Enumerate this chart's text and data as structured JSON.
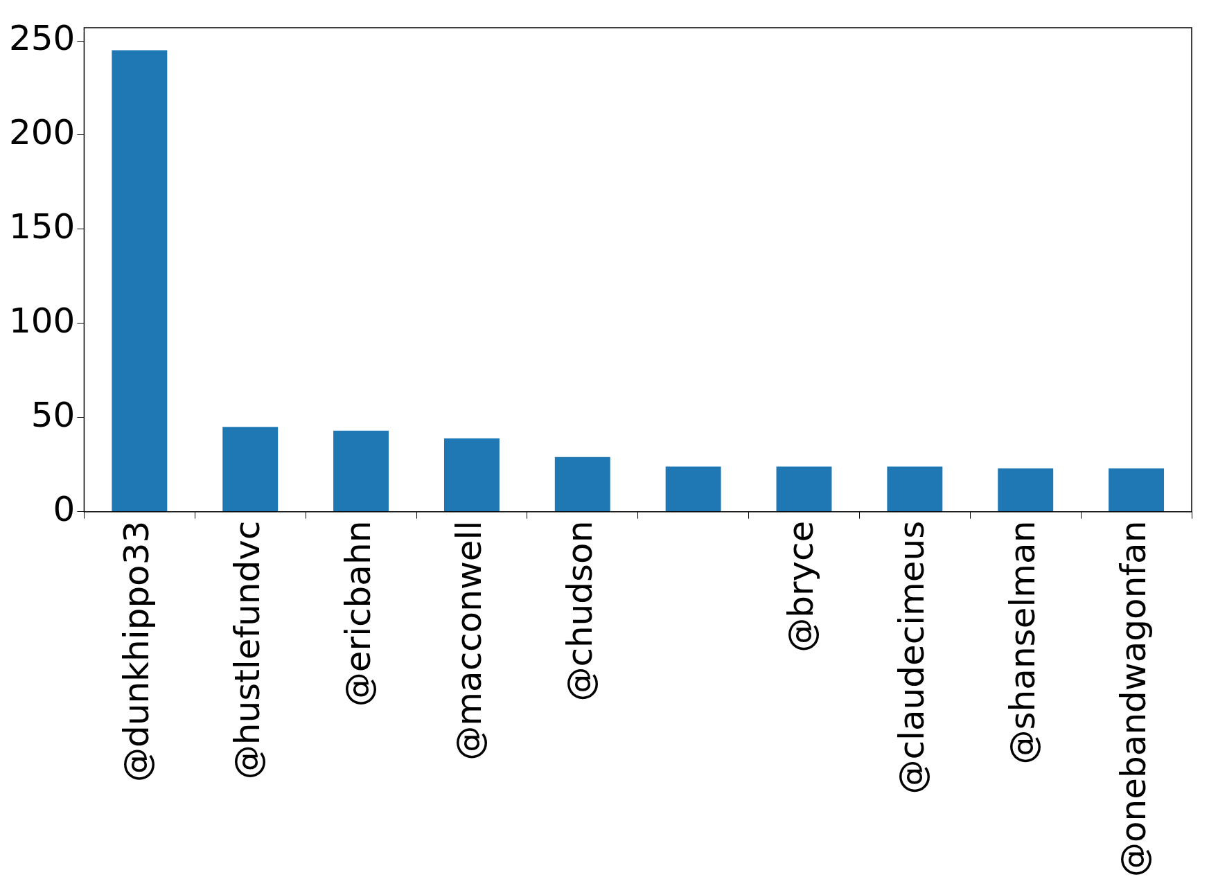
{
  "chart_data": {
    "type": "bar",
    "categories": [
      "@dunkhippo33",
      "@hustlefundvc",
      "@ericbahn",
      "@macconwell",
      "@chudson",
      null,
      "@bryce",
      "@claudecimeus",
      "@shanselman",
      "@onebandwagonfan"
    ],
    "values": [
      245,
      45,
      43,
      39,
      29,
      24,
      24,
      24,
      23,
      23
    ],
    "color": "#1f77b4",
    "ylim": [
      0,
      257
    ],
    "yticks": [
      0,
      50,
      100,
      150,
      200,
      250
    ],
    "grid": false,
    "legend": false
  }
}
